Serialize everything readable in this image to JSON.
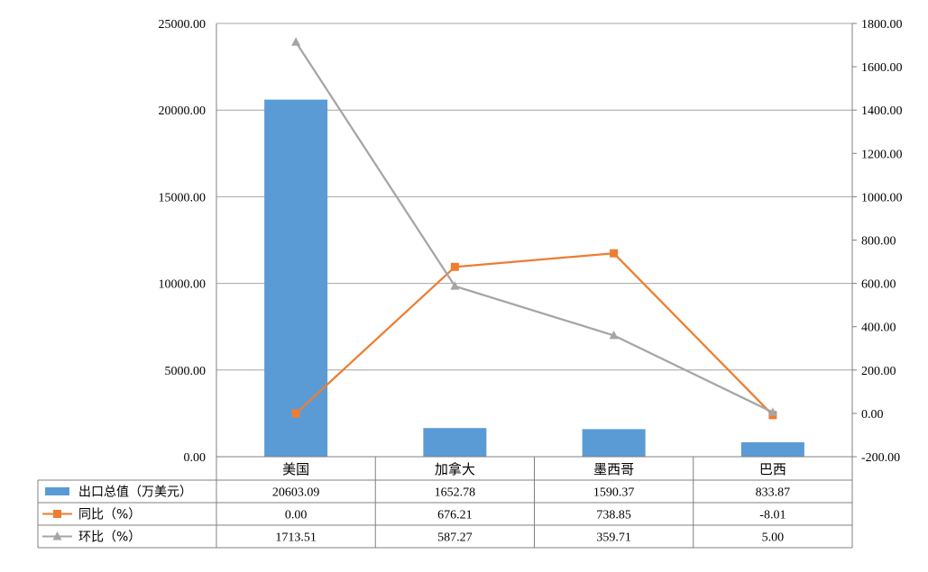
{
  "colors": {
    "bar": "#5b9bd5",
    "yoy_line": "#ed7d31",
    "mom_line": "#a5a5a5",
    "grid": "#a6a6a6",
    "axis": "#808080"
  },
  "chart_data": {
    "type": "bar",
    "categories": [
      "美国",
      "加拿大",
      "墨西哥",
      "巴西"
    ],
    "series": [
      {
        "name": "出口总值（万美元）",
        "kind": "bar",
        "axis": "left",
        "marker": "none",
        "values": [
          20603.09,
          1652.78,
          1590.37,
          833.87
        ],
        "display": [
          "20603.09",
          "1652.78",
          "1590.37",
          "833.87"
        ]
      },
      {
        "name": "同比（%）",
        "kind": "line",
        "axis": "right",
        "marker": "square",
        "values": [
          0.0,
          676.21,
          738.85,
          -8.01
        ],
        "display": [
          "0.00",
          "676.21",
          "738.85",
          "-8.01"
        ]
      },
      {
        "name": "环比（%）",
        "kind": "line",
        "axis": "right",
        "marker": "triangle",
        "values": [
          1713.51,
          587.27,
          359.71,
          5.0
        ],
        "display": [
          "1713.51",
          "587.27",
          "359.71",
          "5.00"
        ]
      }
    ],
    "y_left": {
      "min": 0,
      "max": 25000,
      "step": 5000,
      "ticks": [
        "0.00",
        "5000.00",
        "10000.00",
        "15000.00",
        "20000.00",
        "25000.00"
      ]
    },
    "y_right": {
      "min": -200,
      "max": 1800,
      "step": 200,
      "ticks": [
        "-200.00",
        "0.00",
        "200.00",
        "400.00",
        "600.00",
        "800.00",
        "1000.00",
        "1200.00",
        "1400.00",
        "1600.00",
        "1800.00"
      ]
    },
    "grid": true,
    "data_table": true,
    "legend": "data-table-rows"
  }
}
